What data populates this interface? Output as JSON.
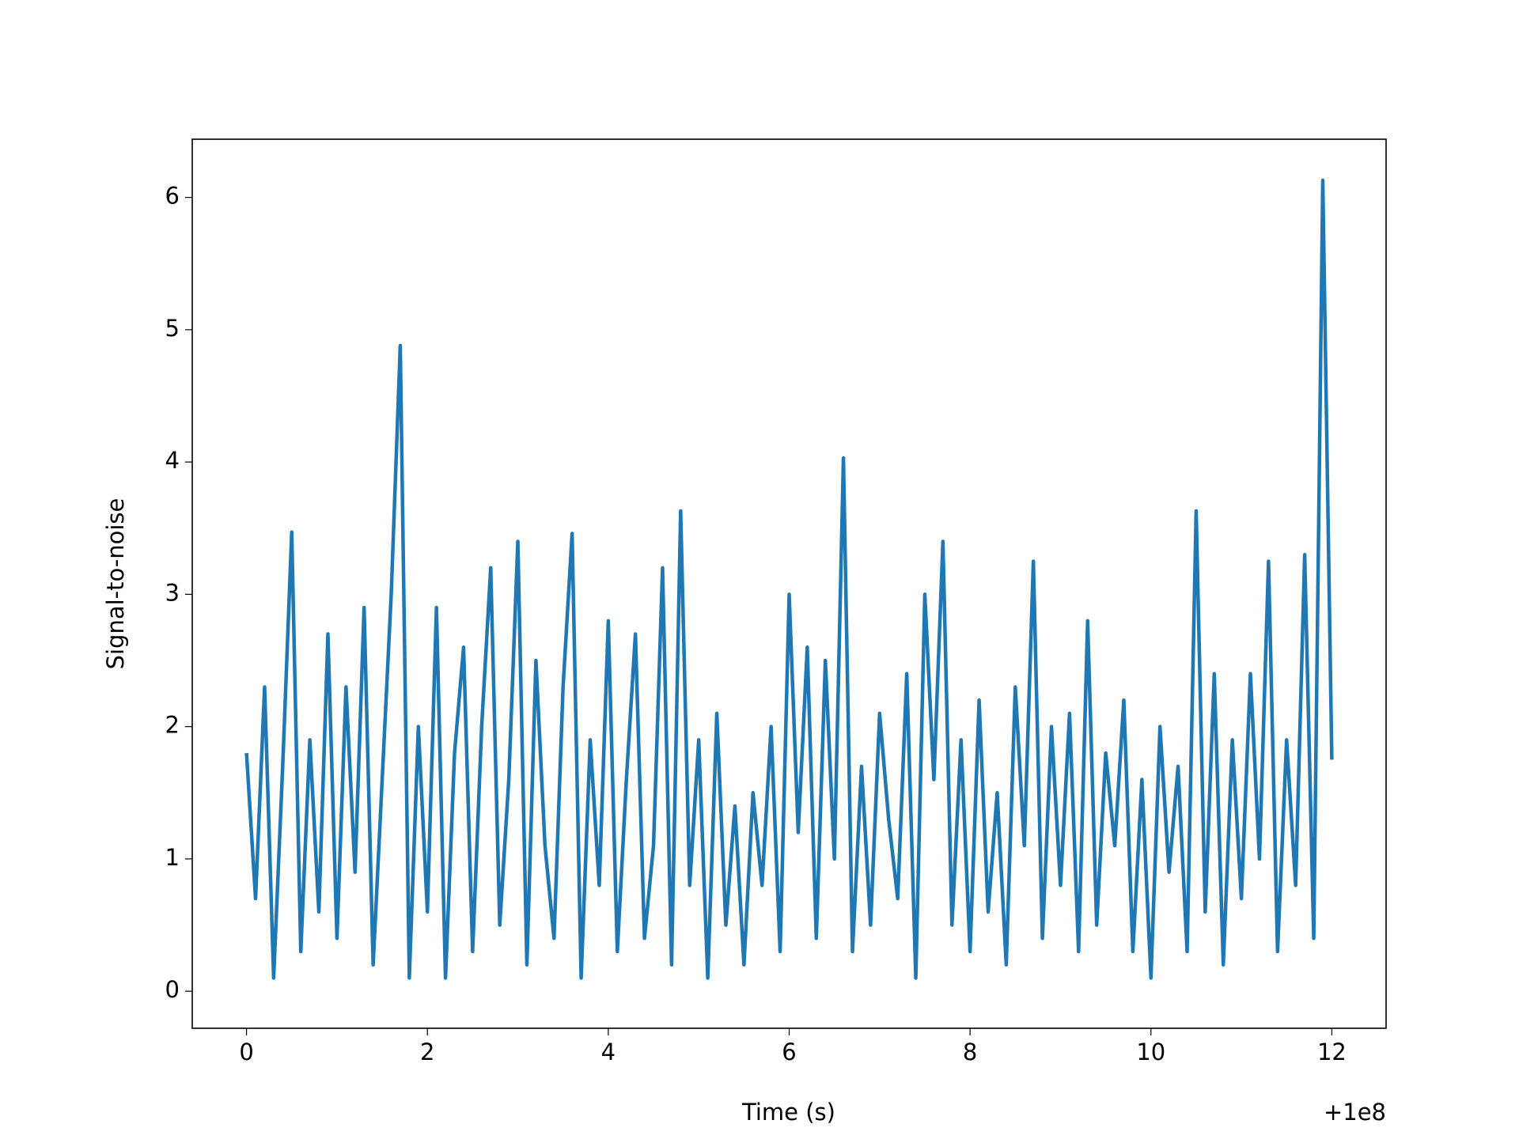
{
  "chart_data": {
    "type": "line",
    "xlabel": "Time (s)",
    "ylabel": "Signal-to-noise",
    "x_offset_label": "+1e8",
    "x": [
      0,
      0.1,
      0.2,
      0.3,
      0.4,
      0.5,
      0.6,
      0.7,
      0.8,
      0.9,
      1.0,
      1.1,
      1.2,
      1.3,
      1.4,
      1.5,
      1.6,
      1.7,
      1.8,
      1.9,
      2.0,
      2.1,
      2.2,
      2.3,
      2.4,
      2.5,
      2.6,
      2.7,
      2.8,
      2.9,
      3.0,
      3.1,
      3.2,
      3.3,
      3.4,
      3.5,
      3.6,
      3.7,
      3.8,
      3.9,
      4.0,
      4.1,
      4.2,
      4.3,
      4.4,
      4.5,
      4.6,
      4.7,
      4.8,
      4.9,
      5.0,
      5.1,
      5.2,
      5.3,
      5.4,
      5.5,
      5.6,
      5.7,
      5.8,
      5.9,
      6.0,
      6.1,
      6.2,
      6.3,
      6.4,
      6.5,
      6.6,
      6.7,
      6.8,
      6.9,
      7.0,
      7.1,
      7.2,
      7.3,
      7.4,
      7.5,
      7.6,
      7.7,
      7.8,
      7.9,
      8.0,
      8.1,
      8.2,
      8.3,
      8.4,
      8.5,
      8.6,
      8.7,
      8.8,
      8.9,
      9.0,
      9.1,
      9.2,
      9.3,
      9.4,
      9.5,
      9.6,
      9.7,
      9.8,
      9.9,
      10.0,
      10.1,
      10.2,
      10.3,
      10.4,
      10.5,
      10.6,
      10.7,
      10.8,
      10.9,
      11.0,
      11.1,
      11.2,
      11.3,
      11.4,
      11.5,
      11.6,
      11.7,
      11.8,
      11.9,
      12.0
    ],
    "series": [
      {
        "name": "snr",
        "color": "#1f77b4",
        "values": [
          1.8,
          0.7,
          2.3,
          0.1,
          1.7,
          3.47,
          0.3,
          1.9,
          0.6,
          2.7,
          0.4,
          2.3,
          0.9,
          2.9,
          0.2,
          1.6,
          3.0,
          4.88,
          0.1,
          2.0,
          0.6,
          2.9,
          0.1,
          1.8,
          2.6,
          0.3,
          2.0,
          3.2,
          0.5,
          1.6,
          3.4,
          0.2,
          2.5,
          1.1,
          0.4,
          2.3,
          3.46,
          0.1,
          1.9,
          0.8,
          2.8,
          0.3,
          1.6,
          2.7,
          0.4,
          1.1,
          3.2,
          0.2,
          3.63,
          0.8,
          1.9,
          0.1,
          2.1,
          0.5,
          1.4,
          0.2,
          1.5,
          0.8,
          2.0,
          0.3,
          3.0,
          1.2,
          2.6,
          0.4,
          2.5,
          1.0,
          4.03,
          0.3,
          1.7,
          0.5,
          2.1,
          1.3,
          0.7,
          2.4,
          0.1,
          3.0,
          1.6,
          3.4,
          0.5,
          1.9,
          0.3,
          2.2,
          0.6,
          1.5,
          0.2,
          2.3,
          1.1,
          3.25,
          0.4,
          2.0,
          0.8,
          2.1,
          0.3,
          2.8,
          0.5,
          1.8,
          1.1,
          2.2,
          0.3,
          1.6,
          0.1,
          2.0,
          0.9,
          1.7,
          0.3,
          3.63,
          0.6,
          2.4,
          0.2,
          1.9,
          0.7,
          2.4,
          1.0,
          3.25,
          0.3,
          1.9,
          0.8,
          3.3,
          0.4,
          6.13,
          1.75
        ]
      }
    ],
    "xlim": [
      -0.6,
      12.6
    ],
    "xticks": [
      0,
      2,
      4,
      6,
      8,
      10,
      12
    ],
    "ylim": [
      -0.28,
      6.44
    ],
    "yticks": [
      0,
      1,
      2,
      3,
      4,
      5,
      6
    ],
    "grid": false
  }
}
